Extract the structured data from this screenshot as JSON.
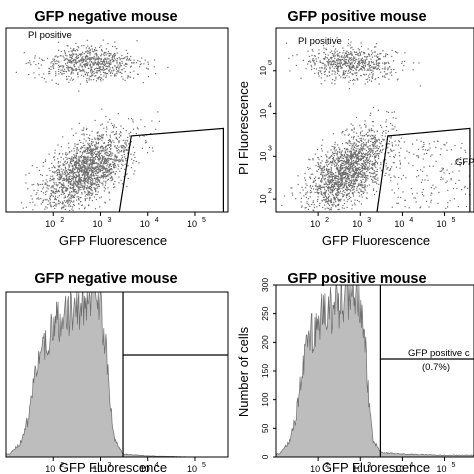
{
  "chart_data": [
    {
      "type": "scatter",
      "title": "GFP negative mouse",
      "xlabel": "GFP Fluorescence",
      "ylabel": "",
      "x_scale": "log",
      "y_scale": "log",
      "xlim": [
        10,
        500000
      ],
      "ylim": [
        50,
        1000000
      ],
      "x_ticks": [
        "10",
        "10",
        "10",
        "10"
      ],
      "x_tick_exponents": [
        "2",
        "3",
        "4",
        "5"
      ],
      "y_ticks": [],
      "annotations": [
        "PI positive"
      ],
      "populations": [
        {
          "center": [
            500,
            500
          ],
          "spread": "dense cluster",
          "x_range": [
            30,
            3000
          ],
          "y_range": [
            80,
            3000
          ]
        },
        {
          "center": [
            600,
            150000
          ],
          "spread": "band",
          "x_range": [
            20,
            3000
          ],
          "y_range": [
            60000,
            400000
          ]
        }
      ],
      "gate": [
        [
          2500,
          50
        ],
        [
          4500,
          3000
        ],
        [
          400000,
          4500
        ],
        [
          400000,
          50
        ]
      ]
    },
    {
      "type": "scatter",
      "title": "GFP positive mouse",
      "xlabel": "GFP Fluorescence",
      "ylabel": "PI Fluorescence",
      "x_scale": "log",
      "y_scale": "log",
      "xlim": [
        10,
        500000
      ],
      "ylim": [
        50,
        1000000
      ],
      "x_ticks": [
        "10",
        "10",
        "10",
        "10"
      ],
      "x_tick_exponents": [
        "2",
        "3",
        "4",
        "5"
      ],
      "y_ticks": [
        "10",
        "10",
        "10",
        "10"
      ],
      "y_tick_exponents": [
        "2",
        "3",
        "4",
        "5"
      ],
      "annotations": [
        "PI positive",
        "GFP"
      ],
      "populations": [
        {
          "center": [
            500,
            500
          ],
          "spread": "dense cluster",
          "x_range": [
            30,
            3000
          ],
          "y_range": [
            80,
            3000
          ]
        },
        {
          "center": [
            600,
            150000
          ],
          "spread": "band",
          "x_range": [
            20,
            3000
          ],
          "y_range": [
            60000,
            400000
          ]
        },
        {
          "center": [
            50000,
            300
          ],
          "spread": "sparse",
          "x_range": [
            4000,
            400000
          ],
          "y_range": [
            60,
            2500
          ]
        }
      ],
      "gate": [
        [
          2500,
          50
        ],
        [
          4500,
          3000
        ],
        [
          400000,
          4500
        ],
        [
          400000,
          50
        ]
      ]
    },
    {
      "type": "area",
      "title": "GFP negative mouse",
      "xlabel": "GFP Fluorescence",
      "ylabel": "",
      "x_scale": "log",
      "xlim": [
        10,
        500000
      ],
      "ylim": [
        0,
        300
      ],
      "x_ticks": [
        "10",
        "10",
        "10",
        "10"
      ],
      "x_tick_exponents": [
        "2",
        "3",
        "4",
        "5"
      ],
      "histogram": {
        "x": [
          12,
          20,
          30,
          40,
          60,
          100,
          150,
          250,
          400,
          600,
          800,
          1000,
          1300,
          1600,
          2000,
          3000,
          10000,
          100000
        ],
        "y": [
          5,
          25,
          70,
          140,
          205,
          235,
          250,
          260,
          275,
          290,
          300,
          280,
          200,
          100,
          30,
          5,
          2,
          0
        ]
      },
      "gate_x": 3000
    },
    {
      "type": "area",
      "title": "GFP positive mouse",
      "xlabel": "GFP Fluorescence",
      "ylabel": "Number of cells",
      "x_scale": "log",
      "xlim": [
        10,
        500000
      ],
      "ylim": [
        0,
        300
      ],
      "y_ticks": [
        "0",
        "50",
        "100",
        "150",
        "200",
        "250",
        "300"
      ],
      "x_ticks": [
        "10",
        "10",
        "10",
        "10"
      ],
      "x_tick_exponents": [
        "2",
        "3",
        "4",
        "5"
      ],
      "histogram": {
        "x": [
          12,
          20,
          30,
          40,
          60,
          100,
          150,
          250,
          400,
          600,
          800,
          1000,
          1300,
          1600,
          2000,
          3000,
          10000,
          100000
        ],
        "y": [
          5,
          25,
          70,
          140,
          205,
          235,
          250,
          260,
          275,
          290,
          300,
          280,
          200,
          100,
          30,
          8,
          5,
          3
        ]
      },
      "gate_x": 3000,
      "annotations": [
        "GFP positive c",
        "(0.7%)"
      ]
    }
  ],
  "colors": {
    "dots": "#6e6e6e",
    "hist_fill": "#bdbdbd",
    "line": "#000000"
  }
}
